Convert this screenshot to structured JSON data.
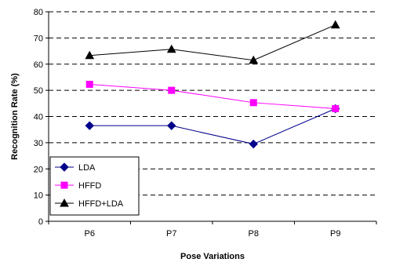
{
  "chart_data": {
    "type": "line",
    "categories": [
      "P6",
      "P7",
      "P8",
      "P9"
    ],
    "series": [
      {
        "name": "LDA",
        "values": [
          36.5,
          36.5,
          29.5,
          43.0
        ],
        "color": "#00008b",
        "marker": "diamond"
      },
      {
        "name": "HFFD",
        "values": [
          52.3,
          50.0,
          45.3,
          43.0
        ],
        "color": "#ff00ff",
        "marker": "square"
      },
      {
        "name": "HFFD+LDA",
        "values": [
          63.3,
          65.7,
          61.5,
          75.0
        ],
        "color": "#000000",
        "marker": "triangle"
      }
    ],
    "xlabel": "Pose Variations",
    "ylabel": "Recognition Rate (%)",
    "ylim": [
      0,
      80
    ],
    "yticks": [
      0,
      10,
      20,
      30,
      40,
      50,
      60,
      70,
      80
    ],
    "grid": "horizontal dashed",
    "legend_position": "bottom-left"
  }
}
